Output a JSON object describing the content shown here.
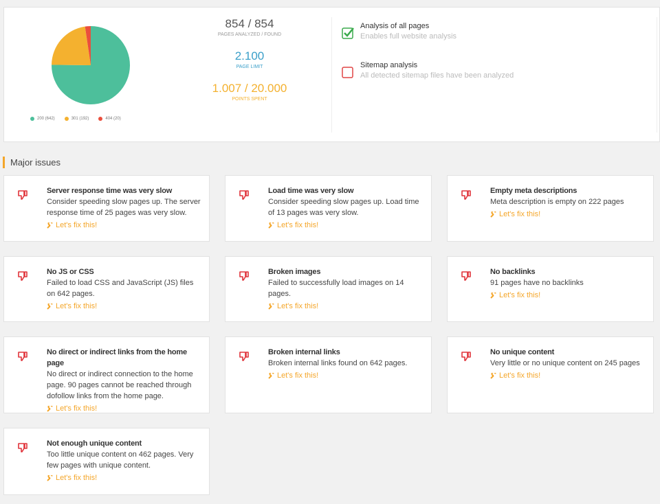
{
  "chart_data": {
    "type": "pie",
    "categories": [
      "200 (642)",
      "301 (192)",
      "404 (20)"
    ],
    "values": [
      642,
      192,
      20
    ],
    "colors": [
      "#4dbf9b",
      "#f4b12f",
      "#ea4f3d"
    ]
  },
  "stats": [
    {
      "value": "854 / 854",
      "label": "PAGES ANALYZED / FOUND",
      "color": "#555555"
    },
    {
      "value": "2.100",
      "label": "PAGE LIMIT",
      "color": "#3a9fc9"
    },
    {
      "value": "1.007 / 20.000",
      "label": "POINTS SPENT",
      "color": "#f4b12f"
    }
  ],
  "options": [
    {
      "title": "Analysis of all pages",
      "description": "Enables full website analysis",
      "checked": true
    },
    {
      "title": "Sitemap analysis",
      "description": "All detected sitemap files have been analyzed",
      "checked": false
    }
  ],
  "section_title": "Major issues",
  "issues": [
    {
      "title": "Server response time was very slow",
      "description": "Consider speeding slow pages up. The server response time of 25 pages was very slow.",
      "action": "Let's fix this!"
    },
    {
      "title": "Load time was very slow",
      "description": "Consider speeding slow pages up. Load time of 13 pages was very slow.",
      "action": "Let's fix this!"
    },
    {
      "title": "Empty meta descriptions",
      "description": "Meta description is empty on 222 pages",
      "action": "Let's fix this!"
    },
    {
      "title": "No JS or CSS",
      "description": "Failed to load CSS and JavaScript (JS) files on 642 pages.",
      "action": "Let's fix this!"
    },
    {
      "title": "Broken images",
      "description": "Failed to successfully load images on 14 pages.",
      "action": "Let's fix this!"
    },
    {
      "title": "No backlinks",
      "description": "91 pages have no backlinks",
      "action": "Let's fix this!"
    },
    {
      "title": "No direct or indirect links from the home page",
      "description": "No direct or indirect connection to the home page. 90 pages cannot be reached through dofollow links from the home page.",
      "action": "Let's fix this!"
    },
    {
      "title": "Broken internal links",
      "description": "Broken internal links found on 642 pages.",
      "action": "Let's fix this!"
    },
    {
      "title": "No unique content",
      "description": "Very little or no unique content on 245 pages",
      "action": "Let's fix this!"
    },
    {
      "title": "Not enough unique content",
      "description": "Too little unique content on 462 pages. Very few pages with unique content.",
      "action": "Let's fix this!"
    }
  ]
}
